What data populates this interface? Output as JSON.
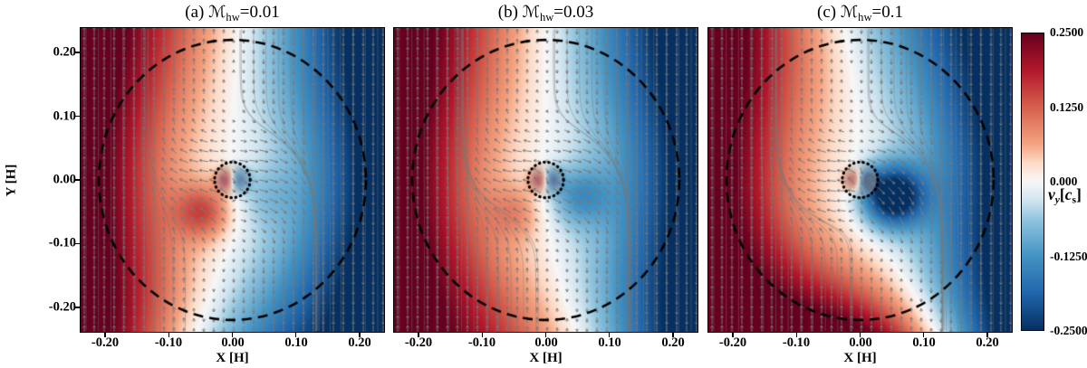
{
  "figure": {
    "ylabel": "Y [H]",
    "yticks": [
      "0.20",
      "0.10",
      "0.00",
      "-0.10",
      "-0.20"
    ],
    "panels": [
      {
        "title": {
          "index": "(a) ",
          "symbol": "ℳ",
          "sub": "hw",
          "value": "=0.01"
        },
        "xlabel": "X [H]",
        "xticks": [
          "-0.20",
          "-0.10",
          "0.00",
          "0.10",
          "0.20"
        ]
      },
      {
        "title": {
          "index": "(b) ",
          "symbol": "ℳ",
          "sub": "hw",
          "value": "=0.03"
        },
        "xlabel": "X [H]",
        "xticks": [
          "-0.20",
          "-0.10",
          "0.00",
          "0.10",
          "0.20"
        ]
      },
      {
        "title": {
          "index": "(c) ",
          "symbol": "ℳ",
          "sub": "hw",
          "value": "=0.1"
        },
        "xlabel": "X [H]",
        "xticks": [
          "-0.20",
          "-0.10",
          "0.00",
          "0.10",
          "0.20"
        ]
      }
    ],
    "colorbar": {
      "ticks": [
        "0.2500",
        "0.1250",
        "0.000",
        "-0.1250",
        "-0.2500"
      ],
      "label": {
        "v": "v",
        "vsub": "y",
        "bracket_open": "[",
        "c": "c",
        "csub": "s",
        "bracket_close": "]"
      }
    }
  },
  "chart_data": {
    "type": "heatmap",
    "title": "Azimuthal velocity v_y around an embedded planet for three headwind Mach numbers, with velocity vectors and streamlines",
    "panels": [
      {
        "label": "(a)",
        "mach_hw": 0.01
      },
      {
        "label": "(b)",
        "mach_hw": 0.03
      },
      {
        "label": "(c)",
        "mach_hw": 0.1
      }
    ],
    "x": {
      "label": "X [H]",
      "range": [
        -0.24,
        0.24
      ],
      "ticks": [
        -0.2,
        -0.1,
        0.0,
        0.1,
        0.2
      ]
    },
    "y": {
      "label": "Y [H]",
      "range": [
        -0.24,
        0.24
      ],
      "ticks": [
        0.2,
        0.1,
        0.0,
        -0.1,
        -0.2
      ]
    },
    "colorbar": {
      "label": "v_y [c_s]",
      "range": [
        -0.25,
        0.25
      ],
      "ticks": [
        0.25,
        0.125,
        0.0,
        -0.125,
        -0.25
      ]
    },
    "field": {
      "background_shear_slope": -1.5,
      "clip": [
        -0.25,
        0.25
      ]
    },
    "annotations": {
      "dashed_ellipse": {
        "cx": 0,
        "cy": 0,
        "rx": 0.21,
        "ry": 0.22
      },
      "dotted_circle": {
        "cx": 0,
        "cy": 0,
        "r": 0.028
      }
    },
    "colormap": {
      "name": "RdBu_r",
      "stops": [
        [
          0,
          "#053061"
        ],
        [
          0.125,
          "#2166ac"
        ],
        [
          0.25,
          "#4393c3"
        ],
        [
          0.375,
          "#92c5de"
        ],
        [
          0.4375,
          "#d1e5f0"
        ],
        [
          0.5,
          "#f7f7f7"
        ],
        [
          0.5625,
          "#fddbc7"
        ],
        [
          0.625,
          "#f4a582"
        ],
        [
          0.75,
          "#d6604d"
        ],
        [
          0.875,
          "#b2182b"
        ],
        [
          1,
          "#67001f"
        ]
      ]
    },
    "render": {
      "panel_params": [
        {
          "bend_below": -1.1,
          "bend_above": 0.2,
          "blue_blob": 0.04,
          "red_blob": 0.12
        },
        {
          "bend_below": 0.9,
          "bend_above": 0.0,
          "blue_blob": 0.1,
          "red_blob": 0.06
        },
        {
          "bend_below": 3.4,
          "bend_above": -0.45,
          "blue_blob": 0.28,
          "red_blob": 0.0
        }
      ]
    }
  }
}
